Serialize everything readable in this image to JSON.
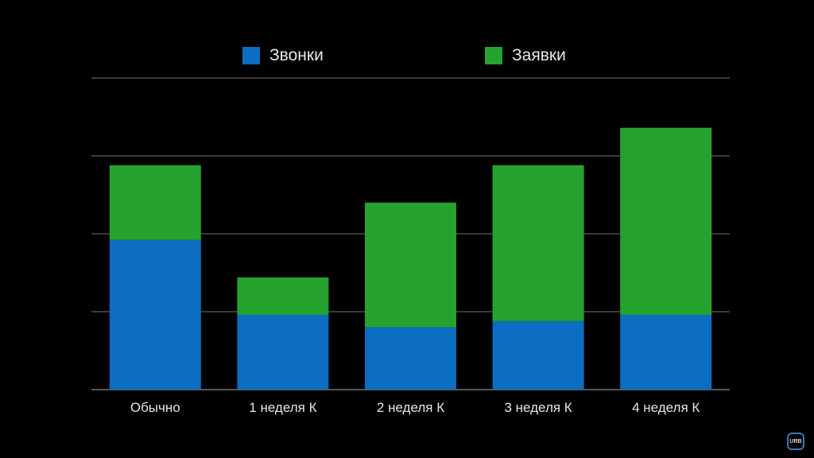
{
  "chart_data": {
    "type": "bar",
    "stacked": true,
    "title": "",
    "xlabel": "",
    "ylabel": "",
    "ylim": [
      0,
      4
    ],
    "grid": true,
    "legend_position": "top",
    "categories": [
      "Обычно",
      "1 неделя К",
      "2 неделя К",
      "3 неделя К",
      "4 неделя К"
    ],
    "series": [
      {
        "name": "Звонки",
        "color": "#0b6ec0",
        "values": [
          1.92,
          0.96,
          0.8,
          0.88,
          0.96
        ]
      },
      {
        "name": "Заявки",
        "color": "#26a22f",
        "values": [
          0.96,
          0.48,
          1.6,
          2.0,
          2.4
        ]
      }
    ]
  },
  "badge": {
    "text": "URB"
  }
}
